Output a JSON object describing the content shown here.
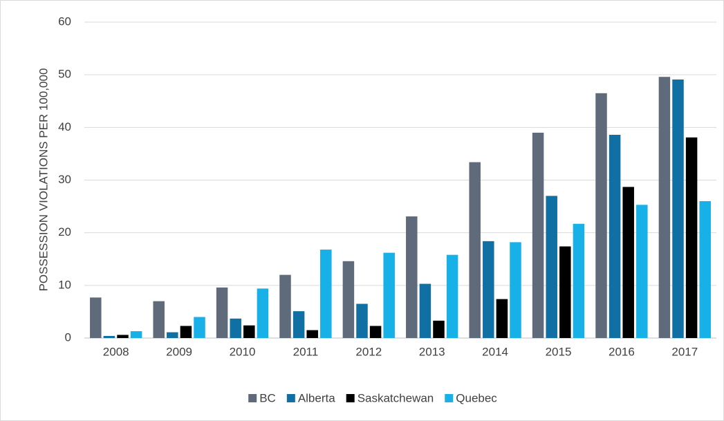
{
  "chart_data": {
    "type": "bar",
    "ylabel": "POSSESSION VIOLATIONS PER 100,000",
    "categories": [
      "2008",
      "2009",
      "2010",
      "2011",
      "2012",
      "2013",
      "2014",
      "2015",
      "2016",
      "2017"
    ],
    "series": [
      {
        "name": "BC",
        "color": "#5f6b7a",
        "values": [
          7.7,
          7.0,
          9.6,
          12.0,
          14.6,
          23.1,
          33.4,
          39.0,
          46.5,
          49.6
        ]
      },
      {
        "name": "Alberta",
        "color": "#1170a3",
        "values": [
          0.4,
          1.1,
          3.7,
          5.1,
          6.5,
          10.3,
          18.4,
          27.0,
          38.6,
          49.1
        ]
      },
      {
        "name": "Saskatchewan",
        "color": "#000000",
        "values": [
          0.6,
          2.3,
          2.4,
          1.5,
          2.3,
          3.3,
          7.4,
          17.4,
          28.7,
          38.1
        ]
      },
      {
        "name": "Quebec",
        "color": "#17b1e8",
        "values": [
          1.3,
          4.0,
          9.4,
          16.8,
          16.2,
          15.8,
          18.2,
          21.7,
          25.3,
          26.0
        ]
      }
    ],
    "ylim": [
      0,
      60
    ],
    "yticks": [
      0,
      10,
      20,
      30,
      40,
      50,
      60
    ],
    "grid": true,
    "legend": "bottom"
  }
}
